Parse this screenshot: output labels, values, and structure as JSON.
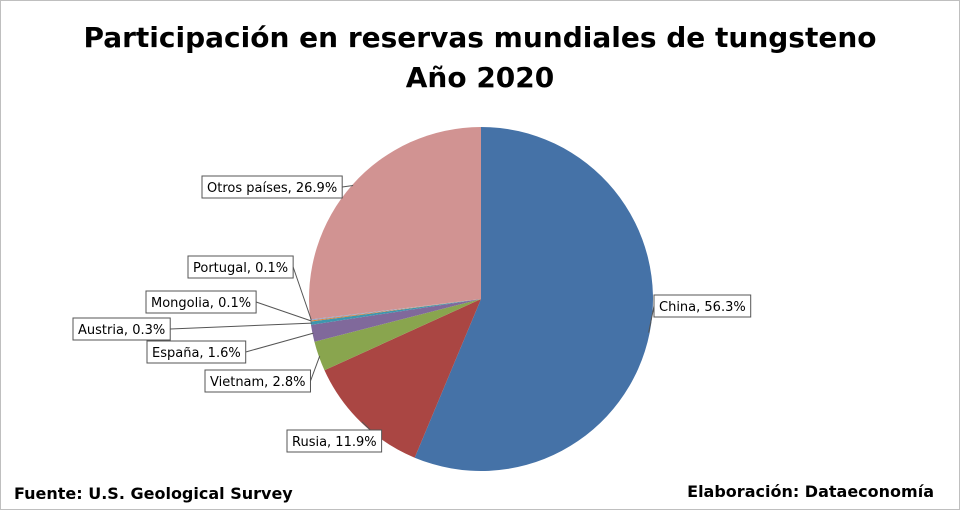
{
  "footer": {
    "source": "Fuente: U.S. Geological Survey",
    "credit": "Elaboración: Dataeconomía"
  },
  "chart_data": {
    "type": "pie",
    "title": "Participación en reservas mundiales de tungsteno",
    "subtitle": "Año 2020",
    "slices": [
      {
        "name": "China",
        "value": 56.3,
        "label": "China, 56.3%",
        "color": "#4572A7"
      },
      {
        "name": "Rusia",
        "value": 11.9,
        "label": "Rusia, 11.9%",
        "color": "#AA4643"
      },
      {
        "name": "Vietnam",
        "value": 2.8,
        "label": "Vietnam, 2.8%",
        "color": "#89A54E"
      },
      {
        "name": "España",
        "value": 1.6,
        "label": "España, 1.6%",
        "color": "#80699B"
      },
      {
        "name": "Austria",
        "value": 0.3,
        "label": "Austria, 0.3%",
        "color": "#3D96AE"
      },
      {
        "name": "Mongolia",
        "value": 0.1,
        "label": "Mongolia, 0.1%",
        "color": "#DB843D"
      },
      {
        "name": "Portugal",
        "value": 0.1,
        "label": "Portugal, 0.1%",
        "color": "#92A8CD"
      },
      {
        "name": "Otros países",
        "value": 26.9,
        "label": "Otros países, 26.9%",
        "color": "#D19392"
      }
    ]
  }
}
